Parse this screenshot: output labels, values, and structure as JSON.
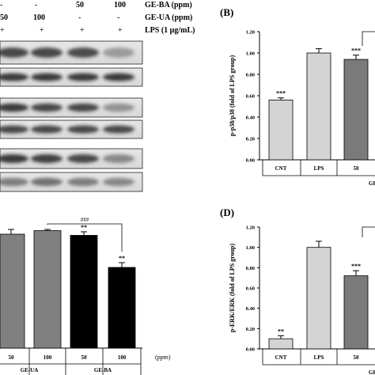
{
  "figure": {
    "treatment_header": {
      "row_ba": {
        "label": "GE-BA (ppm)",
        "marks": [
          "-",
          "-",
          "50",
          "100"
        ]
      },
      "row_ua": {
        "label": "GE-UA (ppm)",
        "marks": [
          "50",
          "100",
          "-",
          "-"
        ]
      },
      "row_lps": {
        "label": "LPS (1 μg/mL)",
        "marks": [
          "+",
          "+",
          "+",
          "+"
        ]
      }
    },
    "bottom_left_axis": {
      "values": [
        "50",
        "100",
        "50",
        "100"
      ],
      "unit": "(ppm)",
      "groups": [
        "GE-UA",
        "GE-BA"
      ]
    }
  },
  "chart_data": [
    {
      "type": "bar",
      "panel": "(B)",
      "ylabel": "p-p38/p38 (fold of LPS group)",
      "ylim": [
        0,
        1.2
      ],
      "yticks": [
        "0.00",
        "0.20",
        "0.40",
        "0.60",
        "0.80",
        "1.00",
        "1.20"
      ],
      "categories": [
        "CNT",
        "LPS",
        "50"
      ],
      "group_label": "GE",
      "values": [
        0.56,
        1.0,
        0.94
      ],
      "errors": [
        0.02,
        0.04,
        0.04
      ],
      "significance": [
        "***",
        "",
        "***"
      ],
      "colors": [
        "#d4d4d4",
        "#d4d4d4",
        "#7a7a7a"
      ]
    },
    {
      "type": "bar",
      "panel": "(D)",
      "ylabel": "p-ERK/ERK (fold of LPS group)",
      "ylim": [
        0,
        1.2
      ],
      "yticks": [
        "0.00",
        "0.20",
        "0.40",
        "0.60",
        "0.80",
        "1.00",
        "1.20"
      ],
      "categories": [
        "CNT",
        "LPS",
        "50"
      ],
      "group_label": "GE",
      "values": [
        0.1,
        1.0,
        0.72
      ],
      "errors": [
        0.03,
        0.06,
        0.05
      ],
      "significance": [
        "**",
        "",
        "***"
      ],
      "colors": [
        "#d4d4d4",
        "#d4d4d4",
        "#7a7a7a"
      ]
    },
    {
      "type": "bar",
      "panel": "bottom-left",
      "categories": [
        "50",
        "100",
        "50",
        "100"
      ],
      "values": [
        0.96,
        0.99,
        0.95,
        0.68
      ],
      "errors": [
        0.04,
        0.01,
        0.03,
        0.04
      ],
      "significance": [
        "",
        "",
        "**",
        "**"
      ],
      "bracket": "###",
      "colors": [
        "#808080",
        "#808080",
        "#000000",
        "#000000"
      ]
    }
  ]
}
